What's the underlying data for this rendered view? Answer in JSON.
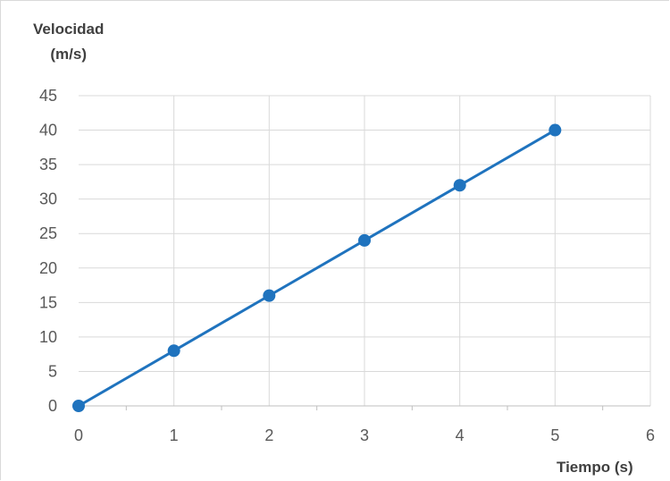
{
  "chart_data": {
    "type": "line",
    "ylabel_lines": [
      "Velocidad",
      "(m/s)"
    ],
    "xlabel": "Tiempo (s)",
    "x": [
      0,
      1,
      2,
      3,
      4,
      5
    ],
    "series": [
      {
        "values": [
          0,
          8,
          16,
          24,
          32,
          40
        ],
        "color": "#1f73be"
      }
    ],
    "xlim": [
      0,
      6
    ],
    "ylim": [
      0,
      45
    ],
    "xticks": [
      0,
      1,
      2,
      3,
      4,
      5,
      6
    ],
    "yticks": [
      0,
      5,
      10,
      15,
      20,
      25,
      30,
      35,
      40,
      45
    ],
    "grid": true,
    "grid_color": "#d9d9d9",
    "marker": "circle"
  }
}
